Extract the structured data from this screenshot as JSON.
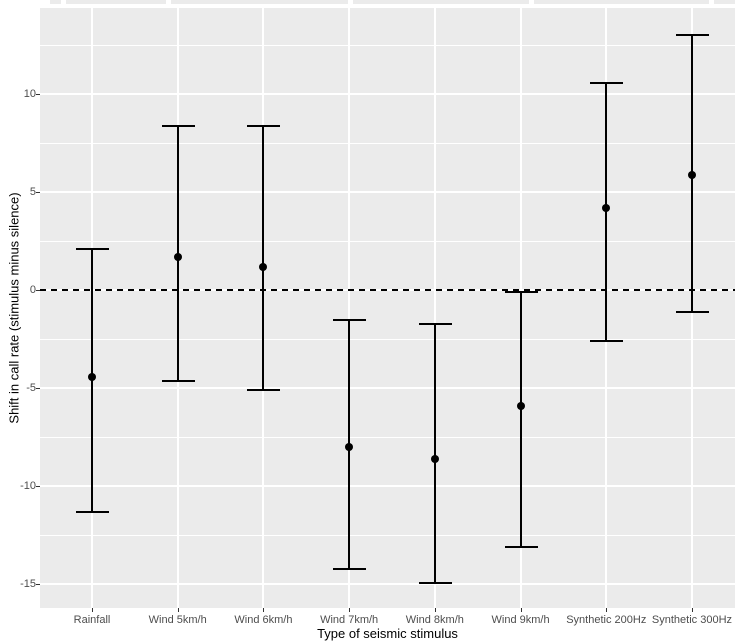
{
  "figure": {
    "colors": {
      "panel_bg": "#ebebeb",
      "grid": "#ffffff",
      "data": "#000000",
      "tick_label": "#4d4d4d",
      "axis_title": "#000000"
    }
  },
  "chart_data": {
    "type": "scatter",
    "subtype": "point-estimate-with-error-bars",
    "title": "",
    "xlabel": "Type of seismic stimulus",
    "ylabel": "Shift in call rate (stimulus minus silence)",
    "categories": [
      "Rainfall",
      "Wind 5km/h",
      "Wind 6km/h",
      "Wind 7km/h",
      "Wind 8km/h",
      "Wind 9km/h",
      "Synthetic 200Hz",
      "Synthetic 300Hz"
    ],
    "series": [
      {
        "name": "Shift in call rate (stimulus minus silence)",
        "values": [
          -4.4,
          1.7,
          1.2,
          -8.0,
          -8.6,
          -5.9,
          4.2,
          5.9
        ],
        "ci_low": [
          -11.3,
          -4.6,
          -5.1,
          -14.2,
          -14.9,
          -13.1,
          -2.6,
          -1.1
        ],
        "ci_high": [
          2.1,
          8.4,
          8.4,
          -1.5,
          -1.7,
          -0.1,
          10.6,
          13.0
        ]
      }
    ],
    "reference_line_y": 0,
    "reference_line_style": "dashed",
    "yticks": [
      10,
      5,
      0,
      -5,
      -10,
      -15
    ],
    "yticks_minor": [
      12.5,
      7.5,
      2.5,
      -2.5,
      -7.5,
      -12.5
    ],
    "ylim": [
      -16.2,
      14.4
    ],
    "grid": true,
    "legend": "none",
    "theme": "ggplot-grey"
  }
}
